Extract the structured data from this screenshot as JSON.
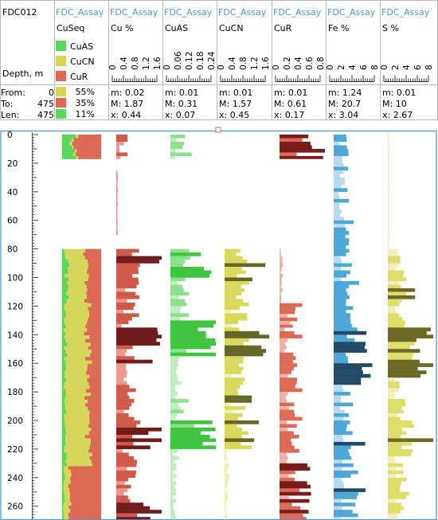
{
  "hole": "FDC012",
  "depth_label": "Depth, m",
  "interval": {
    "from_label": "From:",
    "from": "0",
    "to_label": "To:",
    "to": "475",
    "len_label": "Len:",
    "len": "475"
  },
  "colors": {
    "CuAS": "#5cd65c",
    "CuCN": "#d6d65a",
    "CuR": "#dc6a55",
    "panel_border": "#4a9ad6"
  },
  "tracks": [
    {
      "source": "FDC_Assay",
      "title": "CuSeq",
      "type": "sequence",
      "legend": [
        {
          "label": "CuAS",
          "color": "#5cd65c"
        },
        {
          "label": "CuCN",
          "color": "#d6d65a"
        },
        {
          "label": "CuR",
          "color": "#dc6a55"
        }
      ],
      "stats": [
        {
          "pct": "55%",
          "color": "#d6d65a"
        },
        {
          "pct": "35%",
          "color": "#dc6a55"
        },
        {
          "pct": "11%",
          "color": "#5cd65c"
        }
      ]
    },
    {
      "source": "FDC_Assay",
      "title": "Cu %",
      "ticks": [
        "0",
        "0.4",
        "0.8",
        "1.2",
        "1.6"
      ],
      "max": 1.6,
      "min_label": "m: 0.02",
      "max_label": "M: 1.87",
      "mean_label": "x: 0.44",
      "light": "#e99a8e",
      "mid": "#d05a4a",
      "dark": "#6e1c1c"
    },
    {
      "source": "FDC_Assay",
      "title": "CuAS",
      "ticks": [
        "0",
        "0.06",
        "0.12",
        "0.18",
        "0.24"
      ],
      "max": 0.24,
      "min_label": "m: 0.01",
      "max_label": "M: 0.31",
      "mean_label": "x: 0.07",
      "light": "#bfeebf",
      "mid": "#8fe08f",
      "dark": "#3fc53f"
    },
    {
      "source": "FDC_Assay",
      "title": "CuCN",
      "ticks": [
        "0",
        "0.4",
        "0.8",
        "1.2",
        "1.6"
      ],
      "max": 1.6,
      "min_label": "m: 0.01",
      "max_label": "M: 1.57",
      "mean_label": "x: 0.45",
      "light": "#f0f0b4",
      "mid": "#d9d95e",
      "dark": "#666626"
    },
    {
      "source": "FDC_Assay",
      "title": "CuR",
      "ticks": [
        "0",
        "0.2",
        "0.4",
        "0.6",
        "0.8"
      ],
      "max": 0.8,
      "min_label": "m: 0.01",
      "max_label": "M: 0.61",
      "mean_label": "x: 0.17",
      "light": "#f0b0a4",
      "mid": "#dc6a55",
      "dark": "#7a1c1c"
    },
    {
      "source": "FDC_Assay",
      "title": "Fe %",
      "ticks": [
        "0",
        "2",
        "4",
        "6",
        "8"
      ],
      "max": 8,
      "min_label": "m: 1.24",
      "max_label": "M: 20.7",
      "mean_label": "x: 3.04",
      "light": "#b8dcef",
      "mid": "#4da7d8",
      "dark": "#214a66"
    },
    {
      "source": "FDC_Assay",
      "title": "S %",
      "ticks": [
        "0",
        "2",
        "4",
        "6",
        "8"
      ],
      "max": 8,
      "min_label": "m: 0.01",
      "max_label": "M: 10",
      "mean_label": "x: 2.67",
      "light": "#f0efbc",
      "mid": "#dede6a",
      "dark": "#6a6a26"
    }
  ],
  "chart_data": {
    "type": "bar",
    "orientation": "horizontal-depth-log",
    "y_axis": {
      "label": "Depth, m",
      "ticks": [
        "0",
        "20",
        "40",
        "60",
        "80",
        "100",
        "120",
        "140",
        "160",
        "180",
        "200",
        "220",
        "240",
        "260"
      ],
      "range": [
        0,
        270
      ]
    },
    "cuseq": [
      {
        "depth": [
          0,
          17
        ],
        "CuAS": 0.3,
        "CuCN": 0.05,
        "CuR": 0.65
      },
      {
        "depth": [
          80,
          118
        ],
        "CuAS": 0.12,
        "CuCN": 0.5,
        "CuR": 0.38
      },
      {
        "depth": [
          118,
          200
        ],
        "CuAS": 0.08,
        "CuCN": 0.6,
        "CuR": 0.32
      },
      {
        "depth": [
          200,
          232
        ],
        "CuAS": 0.08,
        "CuCN": 0.62,
        "CuR": 0.3
      },
      {
        "depth": [
          232,
          270
        ],
        "CuAS": 0.05,
        "CuCN": 0.15,
        "CuR": 0.8
      }
    ],
    "series": {
      "Cu %": [
        {
          "depth": [
            0,
            17
          ],
          "value": 0.25
        },
        {
          "depth": [
            25,
            70
          ],
          "value": 0.05
        },
        {
          "depth": [
            80,
            90
          ],
          "value": 1.4
        },
        {
          "depth": [
            90,
            100
          ],
          "value": 1.0
        },
        {
          "depth": [
            100,
            120
          ],
          "value": 0.9
        },
        {
          "depth": [
            120,
            135
          ],
          "value": 0.5
        },
        {
          "depth": [
            135,
            150
          ],
          "value": 1.6
        },
        {
          "depth": [
            150,
            170
          ],
          "value": 0.8
        },
        {
          "depth": [
            170,
            200
          ],
          "value": 0.6
        },
        {
          "depth": [
            200,
            220
          ],
          "value": 1.6
        },
        {
          "depth": [
            220,
            260
          ],
          "value": 0.6
        },
        {
          "depth": [
            260,
            270
          ],
          "value": 1.3
        }
      ],
      "CuAS": [
        {
          "depth": [
            0,
            17
          ],
          "value": 0.07
        },
        {
          "depth": [
            80,
            100
          ],
          "value": 0.18
        },
        {
          "depth": [
            100,
            130
          ],
          "value": 0.08
        },
        {
          "depth": [
            130,
            155
          ],
          "value": 0.22
        },
        {
          "depth": [
            155,
            200
          ],
          "value": 0.06
        },
        {
          "depth": [
            200,
            220
          ],
          "value": 0.24
        },
        {
          "depth": [
            220,
            270
          ],
          "value": 0.03
        }
      ],
      "CuCN": [
        {
          "depth": [
            80,
            95
          ],
          "value": 0.9
        },
        {
          "depth": [
            95,
            120
          ],
          "value": 0.8
        },
        {
          "depth": [
            120,
            135
          ],
          "value": 0.5
        },
        {
          "depth": [
            135,
            155
          ],
          "value": 1.4
        },
        {
          "depth": [
            155,
            200
          ],
          "value": 0.6
        },
        {
          "depth": [
            200,
            220
          ],
          "value": 1.0
        },
        {
          "depth": [
            220,
            270
          ],
          "value": 0.1
        }
      ],
      "CuR": [
        {
          "depth": [
            0,
            17
          ],
          "value": 0.7
        },
        {
          "depth": [
            80,
            118
          ],
          "value": 0.05
        },
        {
          "depth": [
            118,
            135
          ],
          "value": 0.25
        },
        {
          "depth": [
            135,
            200
          ],
          "value": 0.25
        },
        {
          "depth": [
            200,
            230
          ],
          "value": 0.3
        },
        {
          "depth": [
            230,
            270
          ],
          "value": 0.45
        }
      ],
      "Fe %": [
        {
          "depth": [
            0,
            80
          ],
          "value": 2.2
        },
        {
          "depth": [
            80,
            135
          ],
          "value": 2.8
        },
        {
          "depth": [
            135,
            170
          ],
          "value": 5.5
        },
        {
          "depth": [
            170,
            200
          ],
          "value": 3.0
        },
        {
          "depth": [
            200,
            225
          ],
          "value": 4.5
        },
        {
          "depth": [
            225,
            270
          ],
          "value": 3.5
        }
      ],
      "S %": [
        {
          "depth": [
            0,
            80
          ],
          "value": 0.2
        },
        {
          "depth": [
            80,
            130
          ],
          "value": 3.0
        },
        {
          "depth": [
            130,
            170
          ],
          "value": 6.5
        },
        {
          "depth": [
            170,
            200
          ],
          "value": 2.5
        },
        {
          "depth": [
            200,
            225
          ],
          "value": 5.0
        },
        {
          "depth": [
            225,
            270
          ],
          "value": 3.0
        }
      ]
    }
  }
}
